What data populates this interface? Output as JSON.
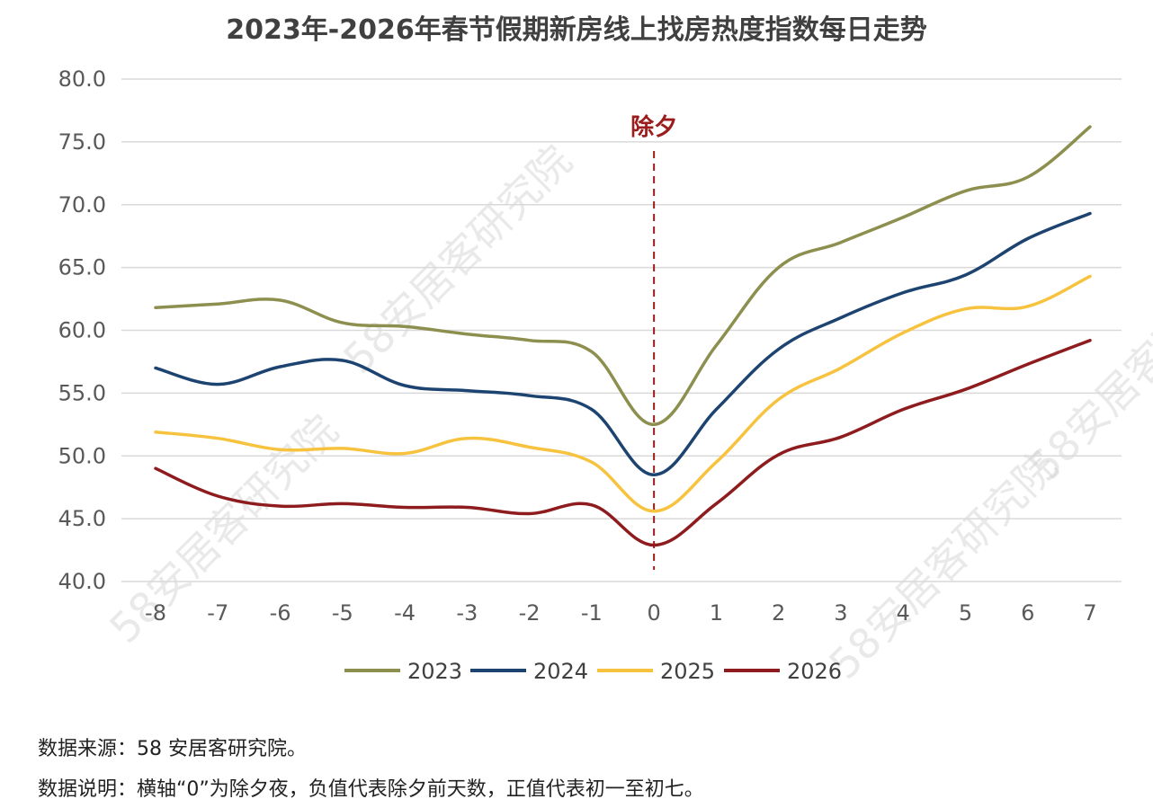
{
  "title": "2023年-2026年春节假期新房线上找房热度指数每日走势",
  "source_text": "数据来源：58 安居客研究院。",
  "note_text": "数据说明：横轴“0”为除夕夜，负值代表除夕前天数，正值代表初一至初七。",
  "watermark_text": "58安居客研究院",
  "chart_data": {
    "type": "line",
    "title": "2023年-2026年春节假期新房线上找房热度指数每日走势",
    "xlabel": "",
    "ylabel": "",
    "x": [
      -8,
      -7,
      -6,
      -5,
      -4,
      -3,
      -2,
      -1,
      0,
      1,
      2,
      3,
      4,
      5,
      6,
      7
    ],
    "x_tick_labels": [
      "-8",
      "-7",
      "-6",
      "-5",
      "-4",
      "-3",
      "-2",
      "-1",
      "0",
      "1",
      "2",
      "3",
      "4",
      "5",
      "6",
      "7"
    ],
    "ylim": [
      40,
      80
    ],
    "y_ticks": [
      40,
      45,
      50,
      55,
      60,
      65,
      70,
      75,
      80
    ],
    "y_tick_labels": [
      "40.0",
      "45.0",
      "50.0",
      "55.0",
      "60.0",
      "65.0",
      "70.0",
      "75.0",
      "80.0"
    ],
    "grid": "horizontal",
    "legend_position": "bottom",
    "annotation": {
      "text": "除夕",
      "x": 0,
      "style": "dashed-vertical-line"
    },
    "series": [
      {
        "name": "2023",
        "color": "#8c8f4e",
        "values": [
          61.8,
          62.1,
          62.4,
          60.6,
          60.3,
          59.7,
          59.2,
          58.3,
          52.5,
          58.8,
          65.0,
          67.0,
          69.0,
          71.1,
          72.2,
          76.2
        ]
      },
      {
        "name": "2024",
        "color": "#1d4471",
        "values": [
          57.0,
          55.7,
          57.1,
          57.6,
          55.6,
          55.2,
          54.8,
          53.7,
          48.5,
          53.7,
          58.5,
          61.0,
          63.0,
          64.4,
          67.3,
          69.3
        ]
      },
      {
        "name": "2025",
        "color": "#f7c33f",
        "values": [
          51.9,
          51.4,
          50.5,
          50.6,
          50.2,
          51.4,
          50.7,
          49.5,
          45.6,
          49.5,
          54.5,
          57.0,
          59.8,
          61.7,
          61.9,
          64.3
        ]
      },
      {
        "name": "2026",
        "color": "#8e1c1e",
        "values": [
          49.0,
          46.8,
          46.0,
          46.2,
          45.9,
          45.9,
          45.4,
          46.1,
          42.9,
          46.2,
          50.1,
          51.5,
          53.7,
          55.3,
          57.3,
          59.2
        ]
      }
    ]
  }
}
